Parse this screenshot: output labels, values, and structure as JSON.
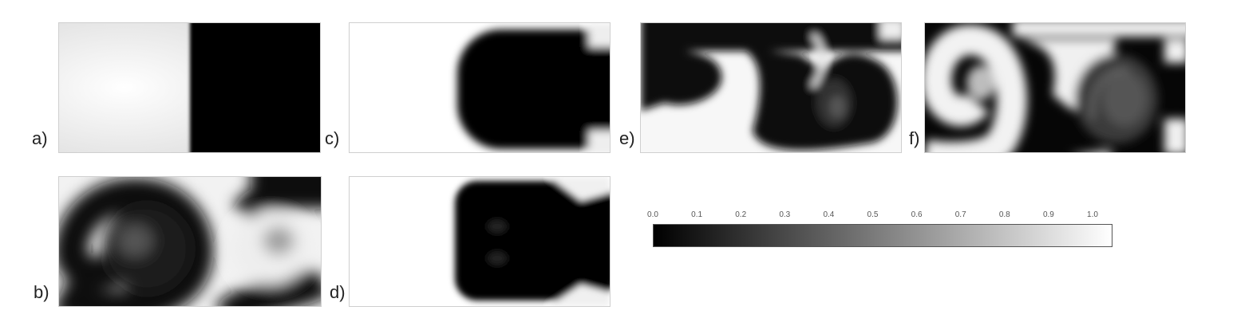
{
  "panels": [
    {
      "label": "a)"
    },
    {
      "label": "b)"
    },
    {
      "label": "c)"
    },
    {
      "label": "d)"
    },
    {
      "label": "e)"
    },
    {
      "label": "f)"
    }
  ],
  "colorbar": {
    "ticks": [
      "0.0",
      "0.1",
      "0.2",
      "0.3",
      "0.4",
      "0.5",
      "0.6",
      "0.7",
      "0.8",
      "0.9",
      "1.0"
    ],
    "colors": {
      "low": "#000000",
      "high": "#ffffff"
    }
  }
}
